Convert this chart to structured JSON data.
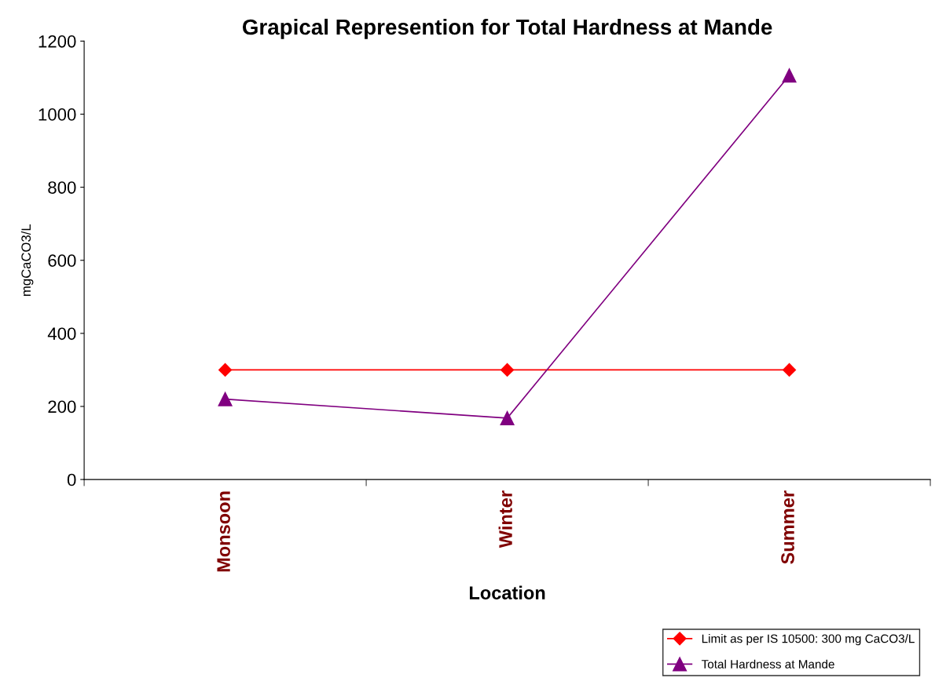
{
  "chart_data": {
    "type": "line",
    "title": "Grapical Represention for Total Hardness at Mande",
    "xlabel": "Location",
    "ylabel": "mgCaCO3/L",
    "categories": [
      "Monsoon",
      "Winter",
      "Summer"
    ],
    "series": [
      {
        "name": "Limit as per IS 10500: 300 mg CaCO3/L",
        "color": "#ff0000",
        "marker": "diamond",
        "values": [
          300,
          300,
          300
        ]
      },
      {
        "name": "Total Hardness at Mande",
        "color": "#800080",
        "marker": "triangle",
        "values": [
          220,
          168,
          1106
        ]
      }
    ],
    "ylim": [
      0,
      1200
    ],
    "yticks": [
      0,
      200,
      400,
      600,
      800,
      1000,
      1200
    ],
    "grid": false,
    "legend": "bottom right",
    "line_style": "solid"
  }
}
